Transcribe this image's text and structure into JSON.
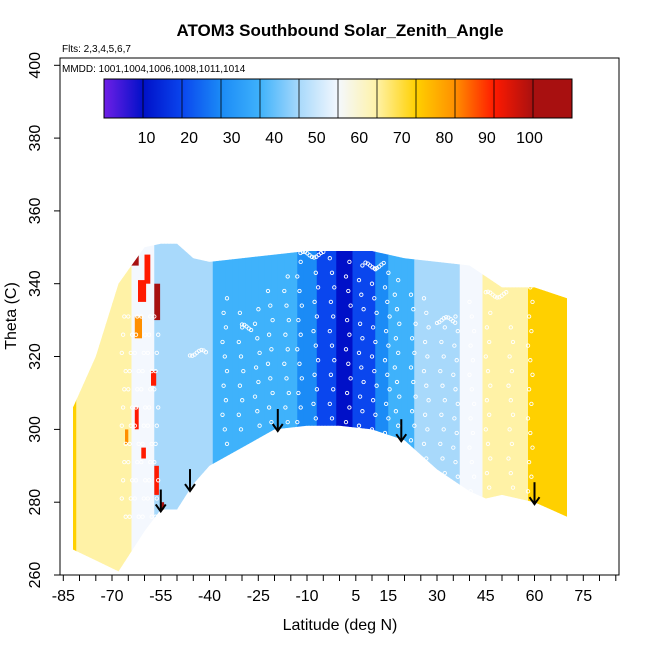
{
  "chart_data": {
    "type": "heatmap",
    "title": "ATOM3 Southbound Solar_Zenith_Angle",
    "flights_text": "Flts: 2,3,4,5,6,7",
    "dates_text": "MMDD: 1001,1004,1006,1008,1011,1014",
    "xlabel": "Latitude (deg N)",
    "ylabel": "Theta (C)",
    "xlim": [
      -86,
      86
    ],
    "ylim": [
      260,
      402
    ],
    "x_tick_labels": [
      "-85",
      "-70",
      "-55",
      "-40",
      "-25",
      "-10",
      "5",
      "15",
      "30",
      "45",
      "60",
      "75"
    ],
    "x_minor_ticks": [
      -85,
      -80,
      -75,
      -70,
      -65,
      -60,
      -55,
      -50,
      -45,
      -40,
      -35,
      -30,
      -25,
      -20,
      -15,
      -10,
      -5,
      0,
      5,
      10,
      15,
      20,
      25,
      30,
      35,
      40,
      45,
      50,
      55,
      60,
      65,
      70,
      75,
      80,
      85
    ],
    "y_tick_labels": [
      "260",
      "280",
      "300",
      "320",
      "340",
      "360",
      "380",
      "400"
    ],
    "colorbar": {
      "tick_labels": [
        "10",
        "20",
        "30",
        "40",
        "50",
        "60",
        "70",
        "80",
        "90",
        "100"
      ],
      "min": 0,
      "max": 110,
      "colors": [
        "#6f1fe6",
        "#0010c8",
        "#0a46ee",
        "#1b8bf6",
        "#3fb2fb",
        "#a8d9fb",
        "#f4f8fe",
        "#fff2a6",
        "#ffd000",
        "#ff8f00",
        "#ff1a00",
        "#a81010"
      ]
    },
    "arrow_latitudes": [
      -55,
      -46,
      -19,
      19,
      60
    ],
    "surface": {
      "lat": [
        -82,
        -75,
        -68,
        -60,
        -55,
        -50,
        -45,
        -40,
        -30,
        -20,
        -10,
        0,
        10,
        20,
        30,
        40,
        45,
        50,
        60,
        70
      ],
      "top_theta": [
        306,
        320,
        340,
        350,
        351,
        351,
        347,
        346,
        347,
        348,
        349,
        349,
        349,
        347,
        346,
        345,
        342,
        339,
        339,
        336
      ],
      "bottom_theta": [
        267,
        264,
        261,
        272,
        278,
        278,
        285,
        290,
        295,
        300,
        301,
        301,
        300,
        297,
        289,
        283,
        281,
        282,
        280,
        276
      ]
    },
    "sza_profile": {
      "lat": [
        -85,
        -72,
        -65,
        -58,
        -55,
        -50,
        -45,
        -40,
        -30,
        -20,
        -10,
        -5,
        0,
        5,
        10,
        15,
        20,
        25,
        30,
        40,
        45,
        50,
        55,
        60,
        70
      ],
      "sza": [
        74,
        72,
        66,
        57,
        48,
        52,
        48,
        46,
        44,
        42,
        34,
        24,
        16,
        19,
        26,
        36,
        44,
        47,
        49,
        57,
        65,
        68,
        71,
        75,
        74
      ]
    }
  }
}
